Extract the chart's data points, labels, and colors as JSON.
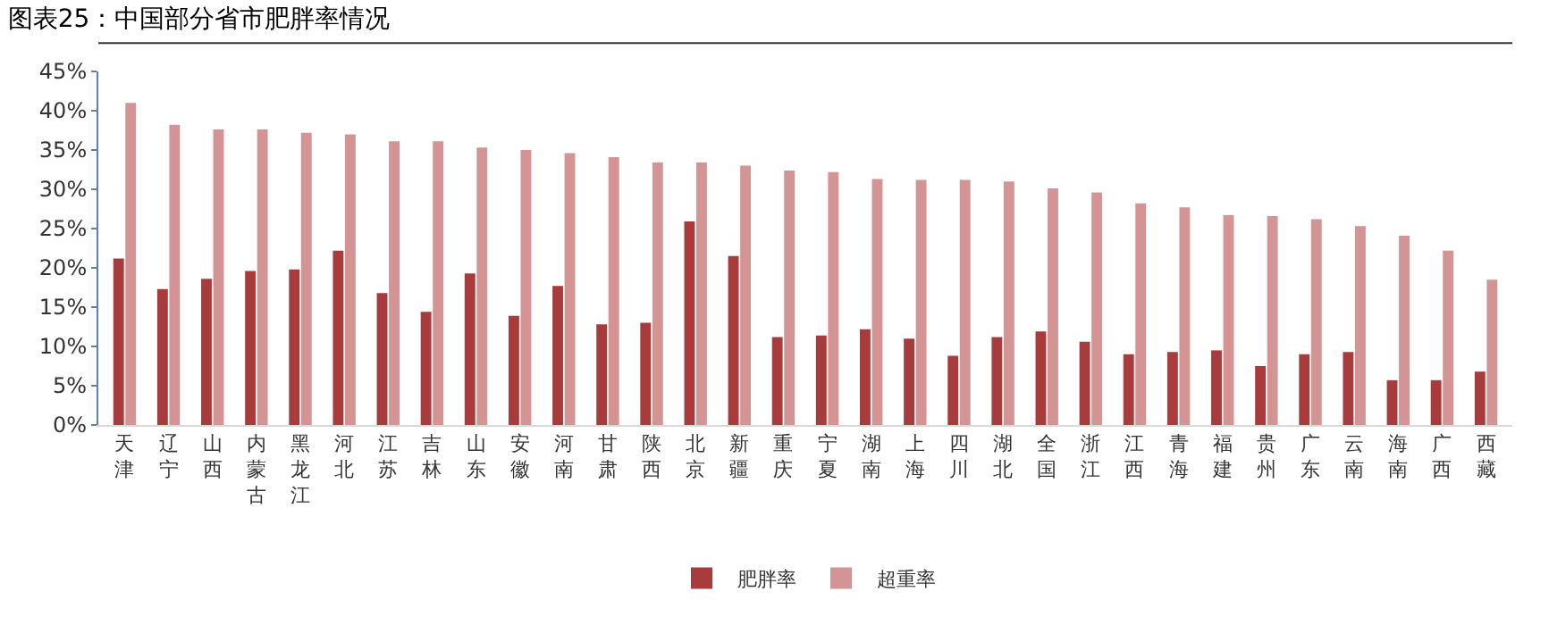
{
  "chart_data": {
    "type": "bar",
    "title": "图表25：中国部分省市肥胖率情况",
    "categories": [
      "天津",
      "辽宁",
      "山西",
      "内蒙古",
      "黑龙江",
      "河北",
      "江苏",
      "吉林",
      "山东",
      "安徽",
      "河南",
      "甘肃",
      "陕西",
      "北京",
      "新疆",
      "重庆",
      "宁夏",
      "湖南",
      "上海",
      "四川",
      "湖北",
      "全国",
      "浙江",
      "江西",
      "青海",
      "福建",
      "贵州",
      "广东",
      "云南",
      "海南",
      "广西",
      "西藏"
    ],
    "series": [
      {
        "name": "肥胖率",
        "color": "#a83c3c",
        "values": [
          21.2,
          17.3,
          18.6,
          19.6,
          19.8,
          22.2,
          16.8,
          14.4,
          19.3,
          13.9,
          17.7,
          12.8,
          13.0,
          25.9,
          21.5,
          11.2,
          11.4,
          12.2,
          11.0,
          8.8,
          11.2,
          11.9,
          10.6,
          9.0,
          9.3,
          9.5,
          7.5,
          9.0,
          9.3,
          5.7,
          5.7,
          6.8
        ]
      },
      {
        "name": "超重率",
        "color": "#d49494",
        "values": [
          41.0,
          38.2,
          37.6,
          37.6,
          37.2,
          37.0,
          36.1,
          36.1,
          35.3,
          35.0,
          34.6,
          34.1,
          33.4,
          33.4,
          33.0,
          32.4,
          32.2,
          31.3,
          31.2,
          31.2,
          31.0,
          30.1,
          29.6,
          28.2,
          27.7,
          26.7,
          26.6,
          26.2,
          25.3,
          24.1,
          22.2,
          18.5
        ]
      }
    ],
    "ylim": [
      0,
      45
    ],
    "yticks": [
      {
        "value": 0,
        "label": "0%"
      },
      {
        "value": 5,
        "label": "5%"
      },
      {
        "value": 10,
        "label": "10%"
      },
      {
        "value": 15,
        "label": "15%"
      },
      {
        "value": 20,
        "label": "20%"
      },
      {
        "value": 25,
        "label": "25%"
      },
      {
        "value": 30,
        "label": "30%"
      },
      {
        "value": 35,
        "label": "35%"
      },
      {
        "value": 40,
        "label": "40%"
      },
      {
        "value": 45,
        "label": "45%"
      }
    ],
    "legend": "bottom"
  }
}
